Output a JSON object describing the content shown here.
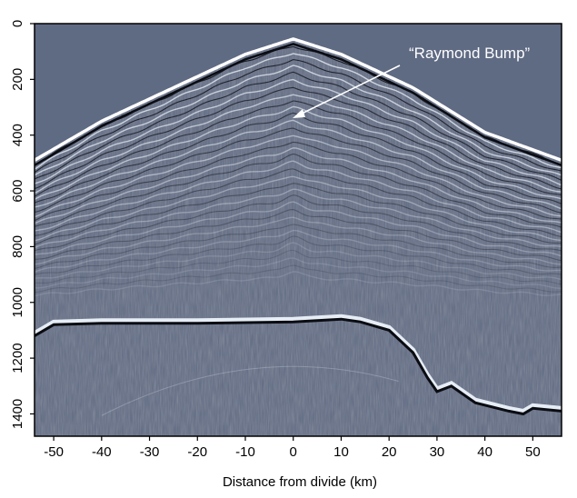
{
  "figure": {
    "xlabel": "Distance from divide (km)",
    "x_ticks": [
      "-50",
      "-40",
      "-30",
      "-20",
      "-10",
      "0",
      "10",
      "20",
      "30",
      "40",
      "50"
    ],
    "y_ticks": [
      "0",
      "200",
      "400",
      "600",
      "800",
      "1000",
      "1200",
      "1400"
    ],
    "xlim": [
      -54,
      56
    ],
    "ylim": [
      0,
      1480
    ],
    "annotation": "“Raymond Bump”",
    "colors": {
      "background": "#5f6a83",
      "layer_light": "#e6edf5",
      "layer_dark": "#0a0c12",
      "surface": "#ffffff"
    }
  },
  "surface_profile": [
    {
      "x": -54,
      "y": 490
    },
    {
      "x": -40,
      "y": 350
    },
    {
      "x": -25,
      "y": 230
    },
    {
      "x": -10,
      "y": 110
    },
    {
      "x": 0,
      "y": 55
    },
    {
      "x": 10,
      "y": 110
    },
    {
      "x": 25,
      "y": 230
    },
    {
      "x": 40,
      "y": 390
    },
    {
      "x": 56,
      "y": 490
    }
  ],
  "bed_profile": [
    {
      "x": -54,
      "y": 1120
    },
    {
      "x": -50,
      "y": 1080
    },
    {
      "x": -40,
      "y": 1075
    },
    {
      "x": -20,
      "y": 1075
    },
    {
      "x": 0,
      "y": 1070
    },
    {
      "x": 10,
      "y": 1060
    },
    {
      "x": 14,
      "y": 1070
    },
    {
      "x": 20,
      "y": 1100
    },
    {
      "x": 25,
      "y": 1180
    },
    {
      "x": 28,
      "y": 1270
    },
    {
      "x": 30,
      "y": 1320
    },
    {
      "x": 33,
      "y": 1300
    },
    {
      "x": 38,
      "y": 1360
    },
    {
      "x": 45,
      "y": 1390
    },
    {
      "x": 48,
      "y": 1400
    },
    {
      "x": 50,
      "y": 1380
    },
    {
      "x": 56,
      "y": 1390
    }
  ]
}
